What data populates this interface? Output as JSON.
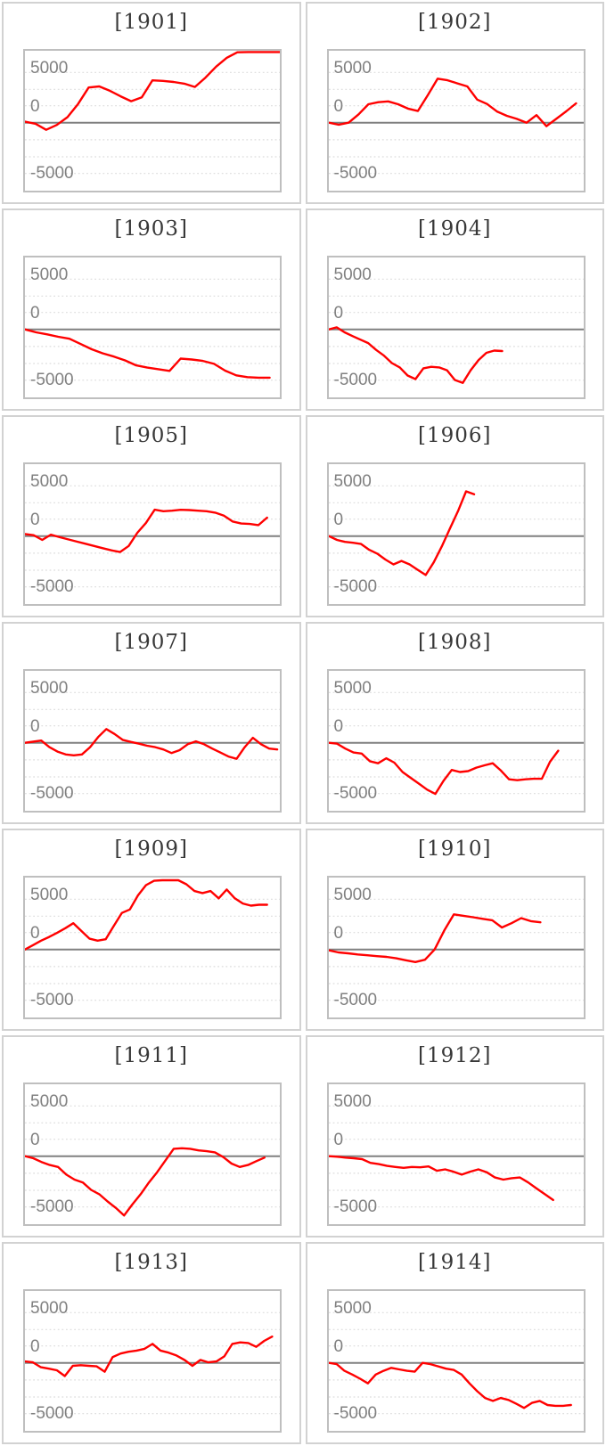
{
  "axis": {
    "top_label": "5000",
    "zero_label": "0",
    "bottom_label": "-5000"
  },
  "style": {
    "line_color": "#ff0000",
    "zero_line_color": "#808080",
    "grid_color": "#dcdcdc",
    "plot_border_color": "#bfbfbf",
    "panel_border_color": "#d2d2d2",
    "title_color": "#383838",
    "label_color": "#808080"
  },
  "chart_data": [
    {
      "type": "line",
      "title": "[1901]",
      "yticks": [
        5000,
        0,
        -5000
      ],
      "ylim": [
        -6350,
        6550
      ],
      "x_end_frac": 1.0,
      "values": [
        100,
        -100,
        -650,
        -200,
        500,
        1700,
        3200,
        3300,
        2900,
        2400,
        1950,
        2300,
        3850,
        3800,
        3700,
        3550,
        3250,
        4100,
        5100,
        5900,
        6400,
        6430,
        6430,
        6430,
        6430
      ]
    },
    {
      "type": "line",
      "title": "[1902]",
      "yticks": [
        5000,
        0,
        -5000
      ],
      "ylim": [
        -6350,
        6550
      ],
      "x_end_frac": 0.97,
      "values": [
        0,
        -190,
        0,
        750,
        1680,
        1860,
        1940,
        1680,
        1280,
        1060,
        2500,
        4000,
        3860,
        3570,
        3300,
        2100,
        1700,
        1020,
        620,
        350,
        0,
        690,
        -320,
        350,
        1030,
        1760
      ]
    },
    {
      "type": "line",
      "title": "[1903]",
      "yticks": [
        5000,
        0,
        -5000
      ],
      "ylim": [
        -6350,
        6550
      ],
      "x_end_frac": 0.96,
      "values": [
        0,
        -270,
        -450,
        -670,
        -850,
        -1330,
        -1810,
        -2180,
        -2470,
        -2820,
        -3270,
        -3480,
        -3620,
        -3780,
        -2660,
        -2740,
        -2870,
        -3140,
        -3750,
        -4180,
        -4340,
        -4390,
        -4390
      ]
    },
    {
      "type": "line",
      "title": "[1904]",
      "yticks": [
        5000,
        0,
        -5000
      ],
      "ylim": [
        -6350,
        6550
      ],
      "x_end_frac": 0.68,
      "values": [
        0,
        190,
        -270,
        -610,
        -930,
        -1250,
        -1860,
        -2390,
        -3060,
        -3460,
        -4200,
        -4520,
        -3540,
        -3400,
        -3460,
        -3720,
        -4600,
        -4870,
        -3720,
        -2790,
        -2130,
        -1930,
        -1970
      ]
    },
    {
      "type": "line",
      "title": "[1905]",
      "yticks": [
        5000,
        0,
        -5000
      ],
      "ylim": [
        -6350,
        6550
      ],
      "x_end_frac": 0.95,
      "values": [
        190,
        80,
        -350,
        130,
        -100,
        -300,
        -500,
        -700,
        -900,
        -1100,
        -1300,
        -1450,
        -900,
        300,
        1200,
        2400,
        2260,
        2310,
        2390,
        2370,
        2310,
        2260,
        2130,
        1860,
        1330,
        1140,
        1100,
        1000,
        1680
      ]
    },
    {
      "type": "line",
      "title": "[1906]",
      "yticks": [
        5000,
        0,
        -5000
      ],
      "ylim": [
        -6350,
        6550
      ],
      "x_end_frac": 0.57,
      "values": [
        0,
        -350,
        -530,
        -610,
        -720,
        -1250,
        -1600,
        -2130,
        -2580,
        -2260,
        -2580,
        -3060,
        -3540,
        -2390,
        -930,
        670,
        2260,
        4070,
        3800
      ]
    },
    {
      "type": "line",
      "title": "[1907]",
      "yticks": [
        5000,
        0,
        -5000
      ],
      "ylim": [
        -6350,
        6550
      ],
      "x_end_frac": 0.99,
      "values": [
        0,
        100,
        200,
        -400,
        -800,
        -1060,
        -1140,
        -1060,
        -400,
        530,
        1250,
        800,
        270,
        80,
        -80,
        -270,
        -400,
        -610,
        -930,
        -670,
        -130,
        130,
        -130,
        -530,
        -880,
        -1250,
        -1460,
        -400,
        450,
        -130,
        -530,
        -610
      ]
    },
    {
      "type": "line",
      "title": "[1908]",
      "yticks": [
        5000,
        0,
        -5000
      ],
      "ylim": [
        -6350,
        6550
      ],
      "x_end_frac": 0.9,
      "values": [
        0,
        -80,
        -530,
        -880,
        -980,
        -1680,
        -1860,
        -1410,
        -1810,
        -2660,
        -3190,
        -3720,
        -4260,
        -4650,
        -3460,
        -2470,
        -2660,
        -2580,
        -2260,
        -2050,
        -1860,
        -2530,
        -3320,
        -3400,
        -3320,
        -3270,
        -3270,
        -1730,
        -720
      ]
    },
    {
      "type": "line",
      "title": "[1909]",
      "yticks": [
        5000,
        0,
        -5000
      ],
      "ylim": [
        -6350,
        6550
      ],
      "x_end_frac": 0.95,
      "values": [
        0,
        400,
        800,
        1140,
        1520,
        1940,
        2390,
        1680,
        980,
        800,
        930,
        2130,
        3320,
        3640,
        4920,
        5850,
        6250,
        6300,
        6300,
        6300,
        5930,
        5320,
        5130,
        5320,
        4650,
        5450,
        4650,
        4180,
        3990,
        4070,
        4070
      ]
    },
    {
      "type": "line",
      "title": "[1910]",
      "yticks": [
        5000,
        0,
        -5000
      ],
      "ylim": [
        -6350,
        6550
      ],
      "x_end_frac": 0.83,
      "values": [
        -80,
        -270,
        -350,
        -450,
        -530,
        -610,
        -670,
        -800,
        -980,
        -1140,
        -930,
        0,
        1730,
        3190,
        3060,
        2930,
        2790,
        2660,
        2000,
        2390,
        2850,
        2580,
        2470
      ]
    },
    {
      "type": "line",
      "title": "[1911]",
      "yticks": [
        5000,
        0,
        -5000
      ],
      "ylim": [
        -6350,
        6550
      ],
      "x_end_frac": 0.94,
      "values": [
        0,
        -190,
        -530,
        -800,
        -980,
        -1680,
        -2130,
        -2390,
        -3060,
        -3460,
        -4120,
        -4710,
        -5400,
        -4390,
        -3460,
        -2390,
        -1460,
        -400,
        670,
        720,
        670,
        530,
        450,
        350,
        -80,
        -670,
        -980,
        -800,
        -450,
        -130
      ]
    },
    {
      "type": "line",
      "title": "[1912]",
      "yticks": [
        5000,
        0,
        -5000
      ],
      "ylim": [
        -6350,
        6550
      ],
      "x_end_frac": 0.88,
      "values": [
        0,
        -50,
        -130,
        -190,
        -270,
        -610,
        -720,
        -880,
        -980,
        -1060,
        -980,
        -1010,
        -930,
        -1330,
        -1200,
        -1410,
        -1680,
        -1410,
        -1200,
        -1460,
        -1940,
        -2130,
        -2000,
        -1940,
        -2390,
        -2930,
        -3460,
        -3990
      ]
    },
    {
      "type": "line",
      "title": "[1913]",
      "yticks": [
        5000,
        0,
        -5000
      ],
      "ylim": [
        -6350,
        6550
      ],
      "x_end_frac": 0.97,
      "values": [
        130,
        50,
        -400,
        -530,
        -670,
        -1200,
        -270,
        -210,
        -270,
        -320,
        -800,
        530,
        850,
        1010,
        1120,
        1280,
        1730,
        1120,
        930,
        670,
        270,
        -270,
        270,
        50,
        130,
        590,
        1730,
        1860,
        1810,
        1460,
        2000,
        2390
      ]
    },
    {
      "type": "line",
      "title": "[1914]",
      "yticks": [
        5000,
        0,
        -5000
      ],
      "ylim": [
        -6350,
        6550
      ],
      "x_end_frac": 0.95,
      "values": [
        0,
        -110,
        -720,
        -1060,
        -1440,
        -1860,
        -1060,
        -720,
        -450,
        -590,
        -720,
        -800,
        0,
        -110,
        -320,
        -530,
        -640,
        -1060,
        -1860,
        -2580,
        -3190,
        -3460,
        -3190,
        -3370,
        -3720,
        -4100,
        -3640,
        -3460,
        -3830,
        -3910,
        -3910,
        -3830
      ]
    }
  ]
}
